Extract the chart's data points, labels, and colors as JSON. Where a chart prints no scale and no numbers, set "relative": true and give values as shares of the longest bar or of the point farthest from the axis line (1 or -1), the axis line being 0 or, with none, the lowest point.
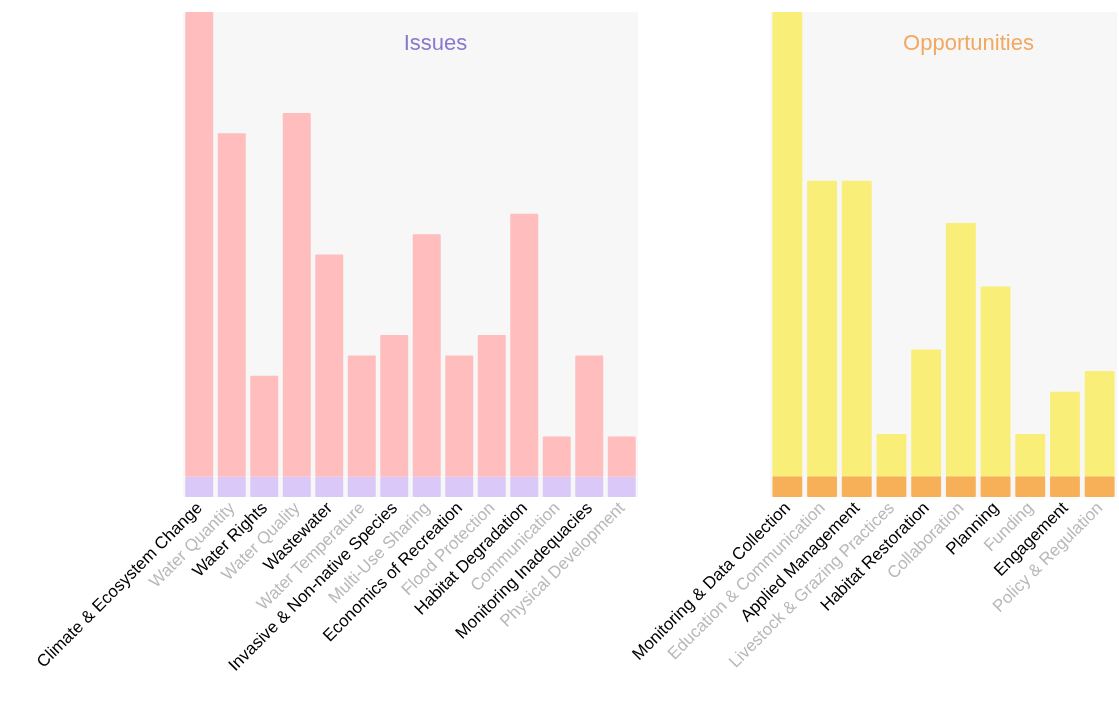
{
  "chart_data": [
    {
      "type": "bar",
      "title": "Issues",
      "relative": true,
      "stacked": true,
      "categories": [
        "Climate & Ecosystem Change",
        "Water Quantity",
        "Water Rights",
        "Water Quality",
        "Wastewater",
        "Water Temperature",
        "Invasive & Non-native Species",
        "Multi-Use Sharing",
        "Economics of Recreation",
        "Flood Protection",
        "Habitat Degradation",
        "Communication",
        "Monitoring Inadequacies",
        "Physical Development"
      ],
      "series": [
        {
          "color": "#d9c8f8",
          "values": [
            0.042,
            0.042,
            0.042,
            0.042,
            0.042,
            0.042,
            0.042,
            0.042,
            0.042,
            0.042,
            0.042,
            0.042,
            0.042,
            0.042
          ]
        },
        {
          "color": "#ffbdbd",
          "values": [
            0.958,
            0.708,
            0.208,
            0.75,
            0.458,
            0.25,
            0.292,
            0.5,
            0.25,
            0.292,
            0.542,
            0.083,
            0.25,
            0.083
          ]
        }
      ]
    },
    {
      "type": "bar",
      "title": "Opportunities",
      "relative": true,
      "stacked": true,
      "categories": [
        "Monitoring & Data Collection",
        "Education & Communication",
        "Applied Management",
        "Livestock & Grazing Practices",
        "Habitat Restoration",
        "Collaboration",
        "Planning",
        "Funding",
        "Engagement",
        "Policy & Regulation"
      ],
      "series": [
        {
          "color": "#f7b057",
          "values": [
            0.043,
            0.043,
            0.043,
            0.043,
            0.043,
            0.043,
            0.043,
            0.043,
            0.043,
            0.043
          ]
        },
        {
          "color": "#f8ee78",
          "values": [
            0.957,
            0.609,
            0.609,
            0.087,
            0.261,
            0.522,
            0.391,
            0.087,
            0.174,
            0.217
          ]
        }
      ]
    }
  ]
}
